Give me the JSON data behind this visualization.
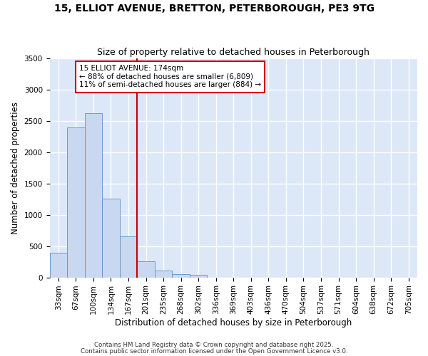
{
  "title_line1": "15, ELLIOT AVENUE, BRETTON, PETERBOROUGH, PE3 9TG",
  "title_line2": "Size of property relative to detached houses in Peterborough",
  "xlabel": "Distribution of detached houses by size in Peterborough",
  "ylabel": "Number of detached properties",
  "bar_color": "#c8d8f0",
  "bar_edge_color": "#6090c8",
  "categories": [
    "33sqm",
    "67sqm",
    "100sqm",
    "134sqm",
    "167sqm",
    "201sqm",
    "235sqm",
    "268sqm",
    "302sqm",
    "336sqm",
    "369sqm",
    "403sqm",
    "436sqm",
    "470sqm",
    "504sqm",
    "537sqm",
    "571sqm",
    "604sqm",
    "638sqm",
    "672sqm",
    "705sqm"
  ],
  "values": [
    390,
    2400,
    2630,
    1260,
    650,
    260,
    110,
    55,
    40,
    0,
    0,
    0,
    0,
    0,
    0,
    0,
    0,
    0,
    0,
    0,
    0
  ],
  "vline_x": 4.5,
  "vline_color": "#cc0000",
  "ylim": [
    0,
    3500
  ],
  "yticks": [
    0,
    500,
    1000,
    1500,
    2000,
    2500,
    3000,
    3500
  ],
  "annotation_text": "15 ELLIOT AVENUE: 174sqm\n← 88% of detached houses are smaller (6,809)\n11% of semi-detached houses are larger (884) →",
  "annotation_box_color": "#ffffff",
  "annotation_border_color": "#cc0000",
  "background_color": "#dce8f8",
  "grid_color": "#ffffff",
  "fig_background": "#ffffff",
  "title_fontsize": 10,
  "subtitle_fontsize": 9,
  "tick_fontsize": 7.5,
  "label_fontsize": 8.5,
  "footer_line1": "Contains HM Land Registry data © Crown copyright and database right 2025.",
  "footer_line2": "Contains public sector information licensed under the Open Government Licence v3.0."
}
